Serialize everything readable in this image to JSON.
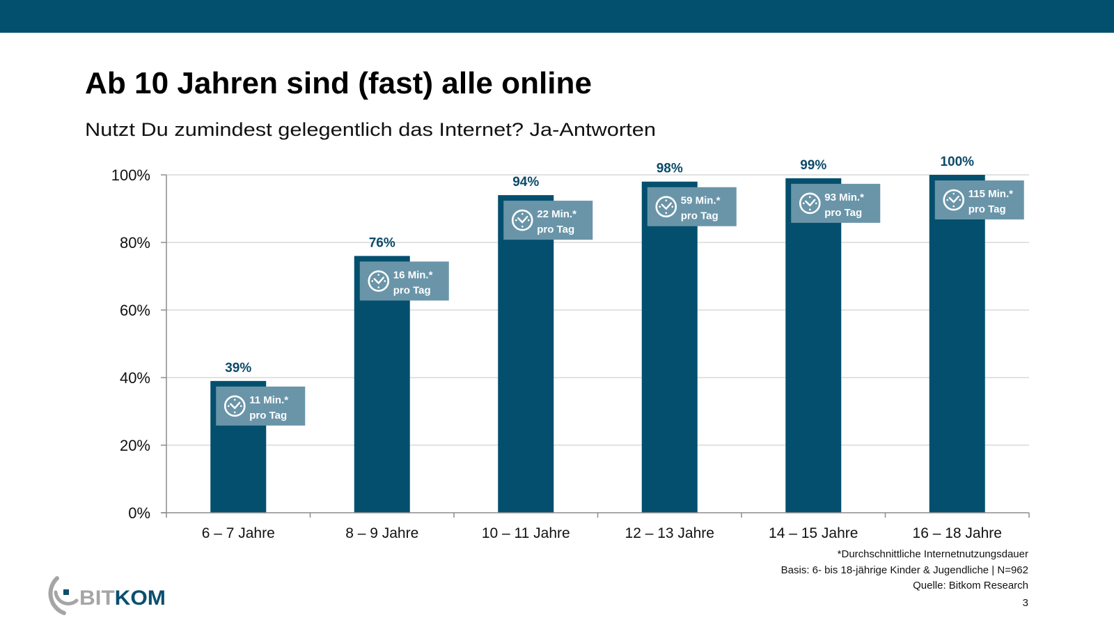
{
  "header": {
    "color": "#03506e"
  },
  "title": "Ab 10 Jahren sind (fast) alle online",
  "subtitle": "Nutzt Du zumindest gelegentlich das Internet? Ja-Antworten",
  "colors": {
    "bar": "#044f6e",
    "callout": "#6a95a9",
    "value_label": "#0b4a69",
    "gridline": "#d9d9d9",
    "axis": "#8c8c8c",
    "logo_gray": "#a5a5a5",
    "logo_blue": "#0a4f6e"
  },
  "chart_data": {
    "type": "bar",
    "title": "Ab 10 Jahren sind (fast) alle online",
    "subtitle": "Nutzt Du zumindest gelegentlich das Internet? Ja-Antworten",
    "xlabel": "",
    "ylabel": "",
    "ylim": [
      0,
      100
    ],
    "yticks": [
      0,
      20,
      40,
      60,
      80,
      100
    ],
    "ytick_labels": [
      "0%",
      "20%",
      "40%",
      "60%",
      "80%",
      "100%"
    ],
    "grid": true,
    "categories": [
      "6 – 7 Jahre",
      "8 – 9 Jahre",
      "10 – 11 Jahre",
      "12 – 13 Jahre",
      "14 – 15 Jahre",
      "16 – 18 Jahre"
    ],
    "values": [
      39,
      76,
      94,
      98,
      99,
      100
    ],
    "value_labels": [
      "39%",
      "76%",
      "94%",
      "98%",
      "99%",
      "100%"
    ],
    "annotations": [
      {
        "icon": "clock-icon",
        "line1": "11 Min.*",
        "line2": "pro Tag",
        "minutes_per_day": 11
      },
      {
        "icon": "clock-icon",
        "line1": "16 Min.*",
        "line2": "pro Tag",
        "minutes_per_day": 16
      },
      {
        "icon": "clock-icon",
        "line1": "22 Min.*",
        "line2": "pro Tag",
        "minutes_per_day": 22
      },
      {
        "icon": "clock-icon",
        "line1": "59 Min.*",
        "line2": "pro Tag",
        "minutes_per_day": 59
      },
      {
        "icon": "clock-icon",
        "line1": "93 Min.*",
        "line2": "pro Tag",
        "minutes_per_day": 93
      },
      {
        "icon": "clock-icon",
        "line1": "115 Min.*",
        "line2": "pro Tag",
        "minutes_per_day": 115
      }
    ]
  },
  "footnotes": {
    "line1": "*Durchschnittliche Internetnutzungsdauer",
    "line2": "Basis: 6- bis 18-jährige Kinder & Jugendliche | N=962",
    "line3": "Quelle: Bitkom Research"
  },
  "page_number": "3",
  "logo": {
    "part1": "BIT",
    "part2": "KOM"
  }
}
